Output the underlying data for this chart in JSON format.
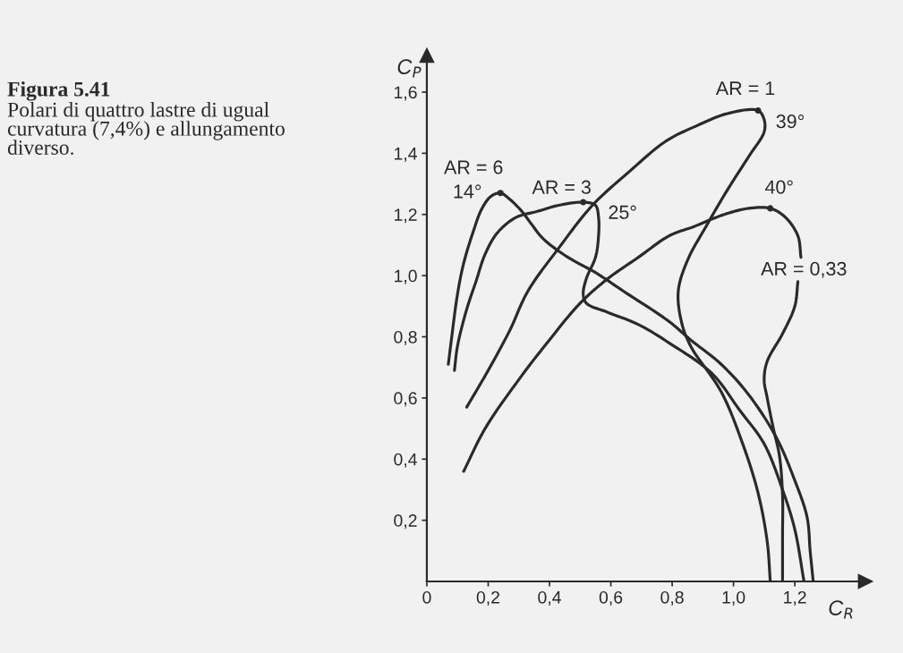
{
  "chart_data": {
    "type": "line",
    "title": "Figura 5.41",
    "subtitle": "Polari di quattro lastre di ugual curvatura (7,4%) e allungamento diverso.",
    "xlabel": "C$_{R}$",
    "ylabel": "C$_{P}$",
    "xlim": [
      0,
      1.43
    ],
    "ylim": [
      0,
      1.72
    ],
    "xticks": [
      {
        "value": 0,
        "label": "0"
      },
      {
        "value": 0.2,
        "label": "0,2"
      },
      {
        "value": 0.4,
        "label": "0,4"
      },
      {
        "value": 0.6,
        "label": "0,6"
      },
      {
        "value": 0.8,
        "label": "0,8"
      },
      {
        "value": 1.0,
        "label": "1,0"
      },
      {
        "value": 1.2,
        "label": "1,2"
      }
    ],
    "yticks": [
      {
        "value": 0.2,
        "label": "0,2"
      },
      {
        "value": 0.4,
        "label": "0,4"
      },
      {
        "value": 0.6,
        "label": "0,6"
      },
      {
        "value": 0.8,
        "label": "0,8"
      },
      {
        "value": 1.0,
        "label": "1,0"
      },
      {
        "value": 1.2,
        "label": "1,2"
      },
      {
        "value": 1.4,
        "label": "1,4"
      },
      {
        "value": 1.6,
        "label": "1,6"
      }
    ],
    "grid": false,
    "legend": false,
    "marker": "none",
    "line_style": "solid",
    "series": [
      {
        "name": "AR = 6",
        "color": "#2a2a2a",
        "x": [
          0.07,
          0.08,
          0.1,
          0.12,
          0.15,
          0.18,
          0.21,
          0.24,
          0.27,
          0.31,
          0.34,
          0.38,
          0.46,
          0.55,
          0.64,
          0.79,
          0.86,
          0.96,
          1.05,
          1.14,
          1.2,
          1.24,
          1.25,
          1.26
        ],
        "values": [
          0.71,
          0.79,
          0.94,
          1.04,
          1.14,
          1.22,
          1.26,
          1.27,
          1.25,
          1.21,
          1.17,
          1.12,
          1.06,
          1.01,
          0.95,
          0.85,
          0.79,
          0.71,
          0.61,
          0.47,
          0.33,
          0.21,
          0.1,
          0.0
        ]
      },
      {
        "name": "AR = 3",
        "color": "#2a2a2a",
        "x": [
          0.09,
          0.1,
          0.13,
          0.16,
          0.19,
          0.23,
          0.29,
          0.36,
          0.43,
          0.51,
          0.55,
          0.56,
          0.56,
          0.55,
          0.52,
          0.51,
          0.52,
          0.59,
          0.69,
          0.79,
          0.93,
          1.02,
          1.1,
          1.16,
          1.2,
          1.23
        ],
        "values": [
          0.69,
          0.77,
          0.89,
          0.98,
          1.07,
          1.14,
          1.19,
          1.21,
          1.23,
          1.24,
          1.23,
          1.19,
          1.13,
          1.06,
          0.99,
          0.94,
          0.91,
          0.88,
          0.84,
          0.78,
          0.68,
          0.56,
          0.45,
          0.3,
          0.17,
          0.0
        ]
      },
      {
        "name": "AR = 1",
        "color": "#2a2a2a",
        "x": [
          0.13,
          0.2,
          0.27,
          0.33,
          0.43,
          0.54,
          0.66,
          0.78,
          0.88,
          0.98,
          1.08,
          1.1,
          1.1,
          1.05,
          0.98,
          0.91,
          0.85,
          0.82,
          0.83,
          0.86,
          0.96,
          1.03,
          1.08,
          1.11,
          1.12
        ],
        "values": [
          0.57,
          0.69,
          0.82,
          0.95,
          1.09,
          1.23,
          1.34,
          1.44,
          1.49,
          1.53,
          1.54,
          1.51,
          1.47,
          1.39,
          1.28,
          1.16,
          1.05,
          0.95,
          0.85,
          0.77,
          0.62,
          0.45,
          0.29,
          0.13,
          0.0
        ]
      },
      {
        "name": "AR = 0,33",
        "color": "#2a2a2a",
        "x": [
          0.12,
          0.19,
          0.3,
          0.4,
          0.5,
          0.59,
          0.69,
          0.79,
          0.87,
          0.97,
          1.05,
          1.12,
          1.17,
          1.21,
          1.22,
          null,
          1.21,
          1.2,
          1.16,
          1.11,
          1.1,
          1.11,
          1.13,
          1.15,
          1.16,
          1.16,
          1.16
        ],
        "values": [
          0.36,
          0.5,
          0.66,
          0.79,
          0.91,
          0.99,
          1.06,
          1.13,
          1.16,
          1.2,
          1.22,
          1.22,
          1.19,
          1.13,
          1.06,
          null,
          0.98,
          0.9,
          0.81,
          0.72,
          0.66,
          0.6,
          0.5,
          0.41,
          0.28,
          0.15,
          0.0
        ]
      },
      {
        "type": "scatter",
        "marker": "circle",
        "color": "#2a2a2a",
        "x": [
          0.24,
          0.51,
          1.08,
          1.12
        ],
        "values": [
          1.27,
          1.24,
          1.54,
          1.22
        ]
      }
    ],
    "annotations": [
      {
        "text": "14°",
        "x": 0.24,
        "y": 1.27
      },
      {
        "text": "25°",
        "x": 0.51,
        "y": 1.24
      },
      {
        "text": "39°",
        "x": 1.08,
        "y": 1.54
      },
      {
        "text": "40°",
        "x": 1.12,
        "y": 1.22
      }
    ]
  }
}
